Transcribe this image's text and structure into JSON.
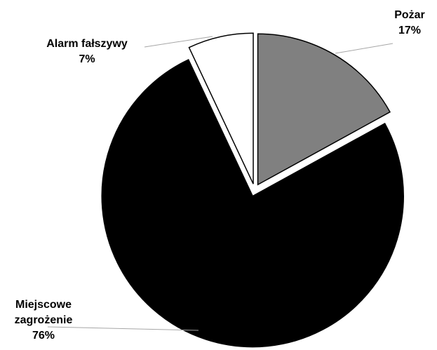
{
  "chart_data": {
    "type": "pie",
    "title": "",
    "slices": [
      {
        "label": "Pożar",
        "pct_label": "17%",
        "value": 17,
        "color": "#808080"
      },
      {
        "label": "Miejscowe zagrożenie",
        "pct_label": "76%",
        "value": 76,
        "color": "#000000"
      },
      {
        "label": "Alarm fałszywy",
        "pct_label": "7%",
        "value": 7,
        "color": "#ffffff"
      }
    ],
    "start_angle_deg": 0,
    "direction": "clockwise",
    "exploded": true,
    "legend": "none",
    "data_labels": "outside with leader lines"
  }
}
